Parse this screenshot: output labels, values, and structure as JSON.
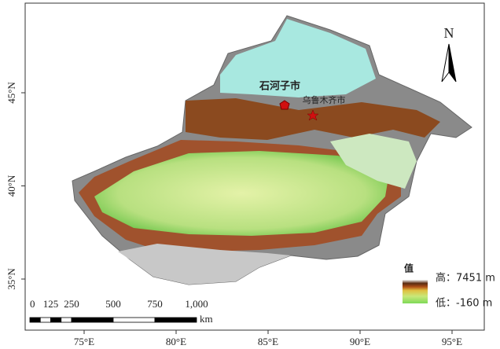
{
  "map": {
    "lon_labels": [
      "75°E",
      "80°E",
      "85°E",
      "90°E",
      "95°E"
    ],
    "lat_labels": [
      "45°N",
      "40°N",
      "35°N"
    ],
    "cities": [
      {
        "label": "石河子市"
      },
      {
        "label": "乌鲁木齐市"
      }
    ],
    "north": "N",
    "legend": {
      "title": "值",
      "high": "高：7451 m",
      "low": "低：-160 m"
    },
    "scale_bar": {
      "labels": [
        "0",
        "125",
        "250",
        "500",
        "750",
        "1,000"
      ],
      "unit": "km"
    }
  }
}
